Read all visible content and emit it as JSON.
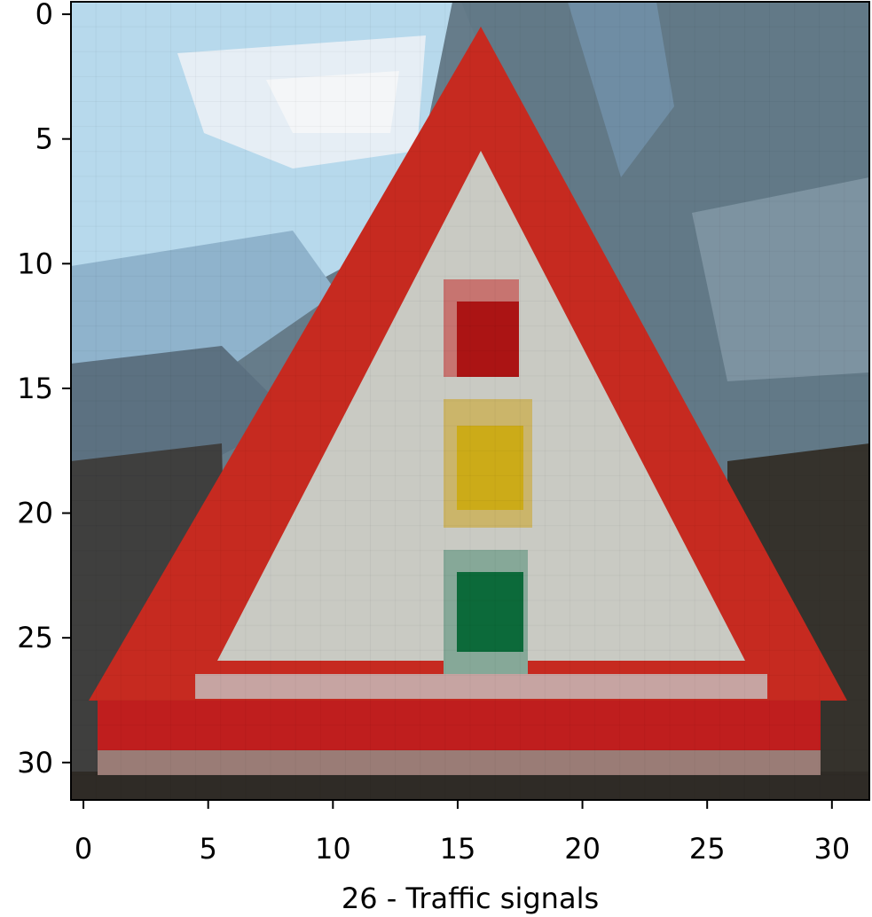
{
  "figure": {
    "xlabel": "26 - Traffic signals",
    "xticks": [
      "0",
      "5",
      "10",
      "15",
      "20",
      "25",
      "30"
    ],
    "yticks": [
      "0",
      "5",
      "10",
      "15",
      "20",
      "25",
      "30"
    ],
    "image_grid": 32,
    "subject": "triangular warning road sign with traffic light symbol",
    "colors": {
      "sky": "#b9dcef",
      "sign_red": "#c72a20",
      "sign_fill": "#c8c9c2",
      "light_red": "#aa1212",
      "light_yellow": "#cda817",
      "light_green": "#0a6b3a",
      "ground": "#3a3631"
    }
  }
}
